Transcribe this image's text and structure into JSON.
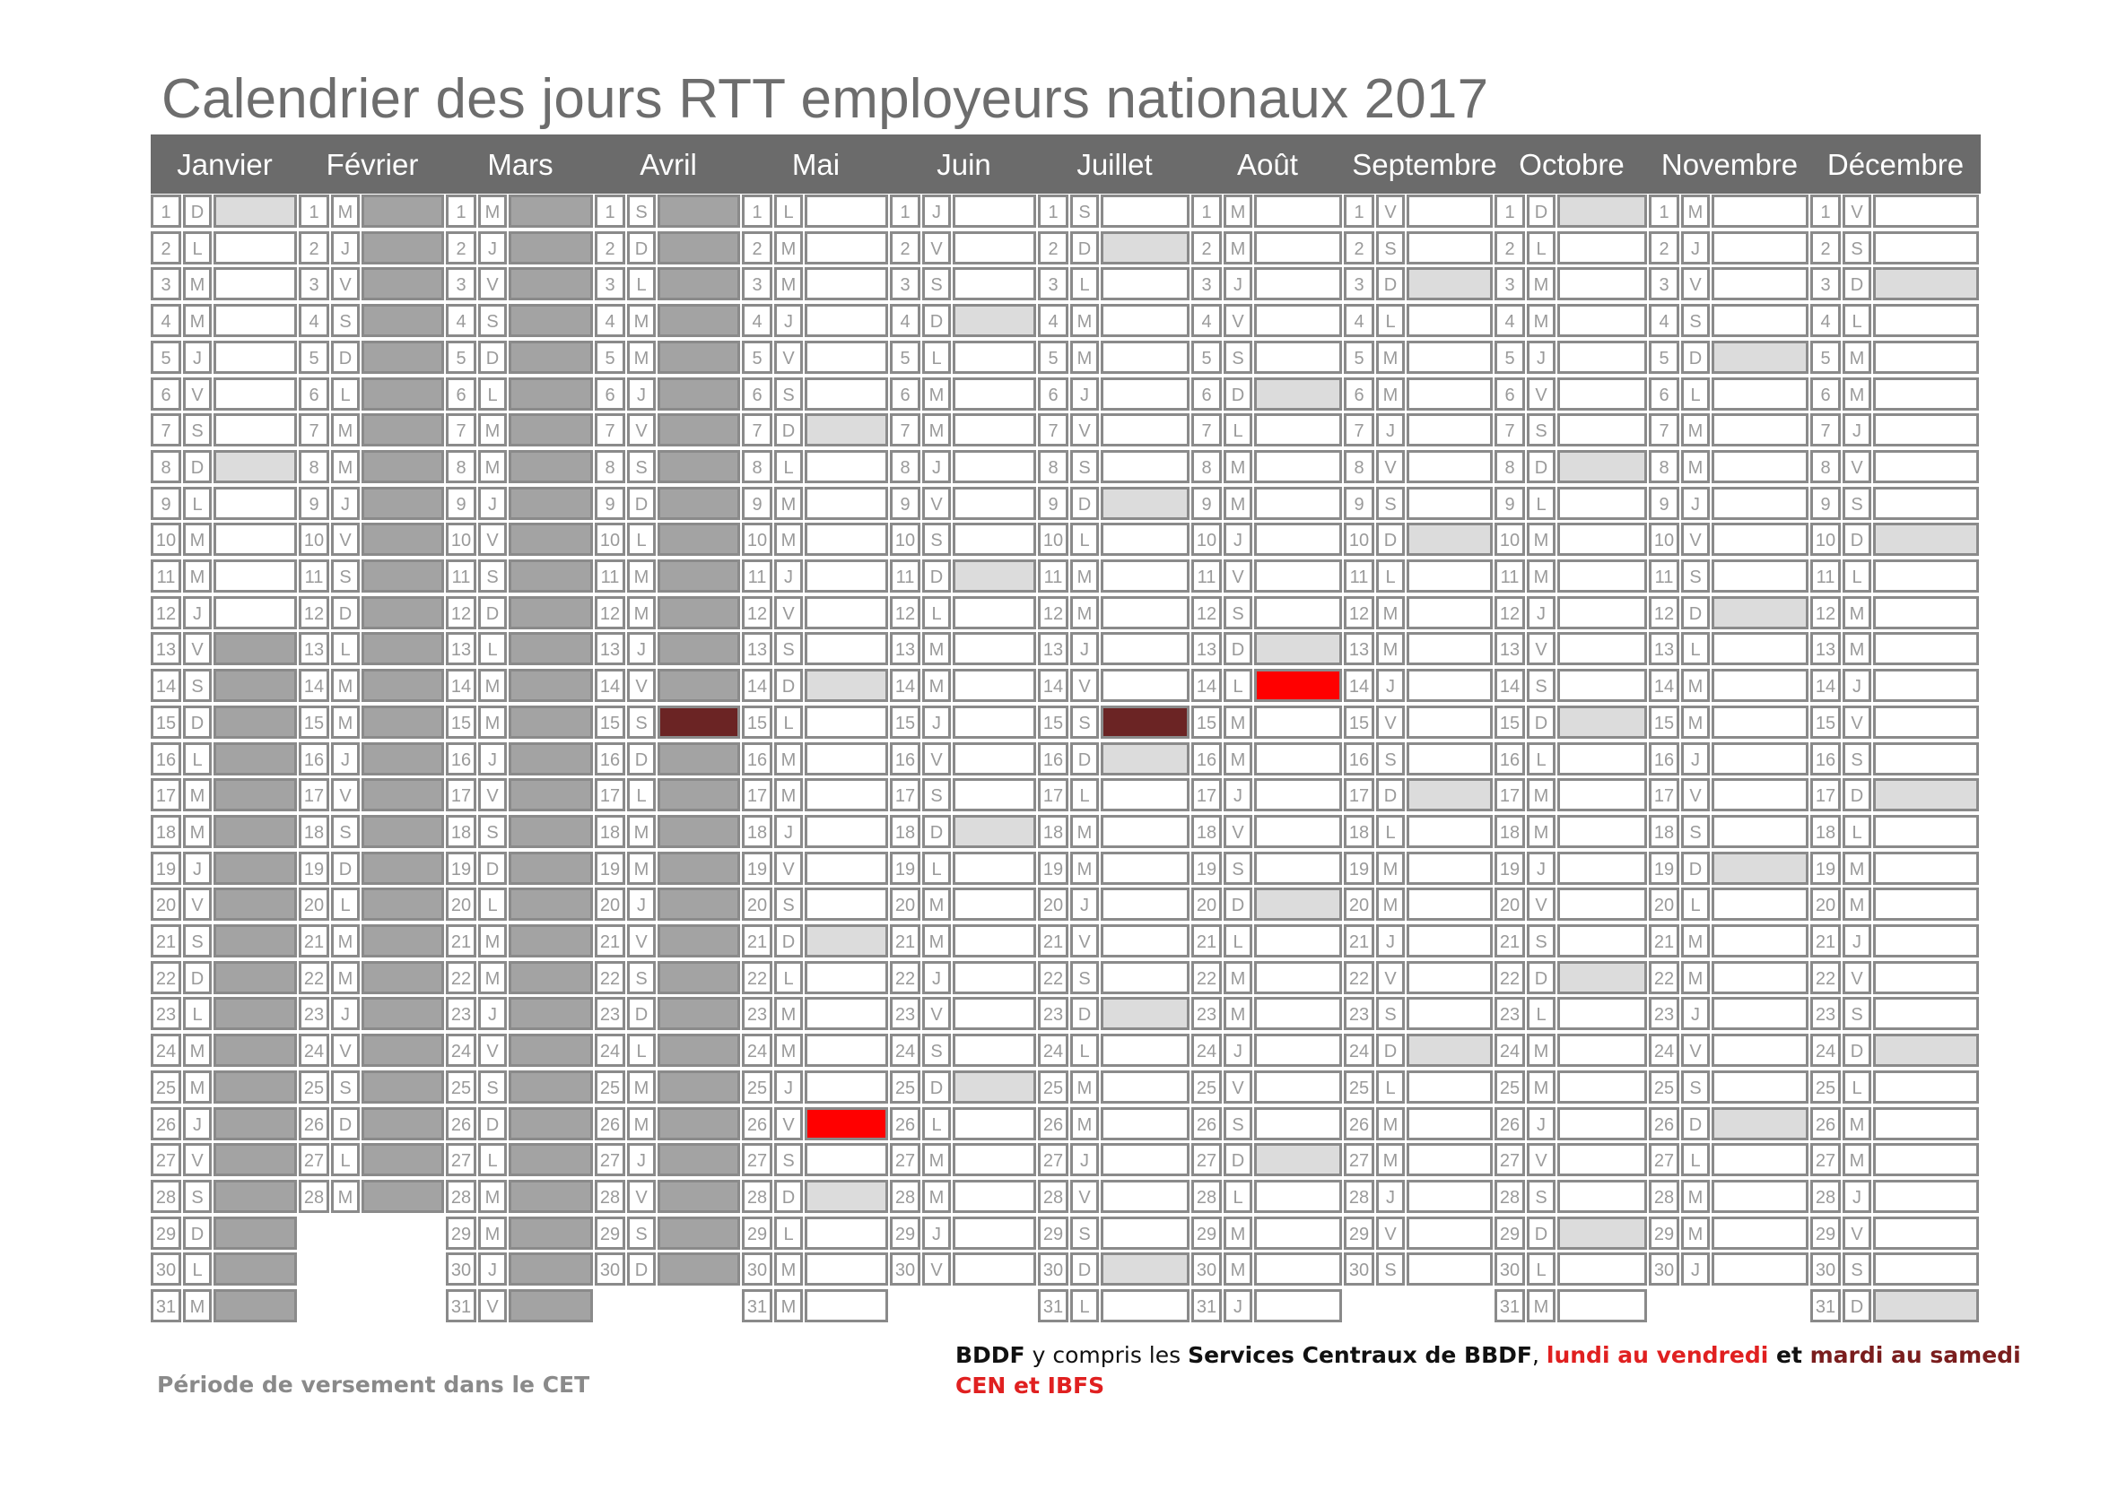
{
  "title": "Calendrier des jours RTT employeurs nationaux 2017",
  "year": 2017,
  "months": [
    {
      "name": "Janvier",
      "days": 31,
      "first_dow": 0
    },
    {
      "name": "Février",
      "days": 28,
      "first_dow": 3
    },
    {
      "name": "Mars",
      "days": 31,
      "first_dow": 3
    },
    {
      "name": "Avril",
      "days": 30,
      "first_dow": 6
    },
    {
      "name": "Mai",
      "days": 31,
      "first_dow": 1
    },
    {
      "name": "Juin",
      "days": 30,
      "first_dow": 4
    },
    {
      "name": "Juillet",
      "days": 31,
      "first_dow": 6
    },
    {
      "name": "Août",
      "days": 31,
      "first_dow": 2
    },
    {
      "name": "Septembre",
      "days": 30,
      "first_dow": 5
    },
    {
      "name": "Octobre",
      "days": 31,
      "first_dow": 0
    },
    {
      "name": "Novembre",
      "days": 30,
      "first_dow": 3
    },
    {
      "name": "Décembre",
      "days": 31,
      "first_dow": 5
    }
  ],
  "day_letters": [
    "D",
    "L",
    "M",
    "M",
    "J",
    "V",
    "S"
  ],
  "colors": {
    "header": "#6b6b6b",
    "cet_period": "#a3a3a3",
    "weekend": "#dcdcdc",
    "rtt_bddf": "#ff0000",
    "rtt_cen_ibfs": "#6b2424",
    "border": "#8a8a8a"
  },
  "cet_period": {
    "start": "2017-01-13",
    "end": "2017-04-30"
  },
  "rtt_days": [
    {
      "date": "2017-04-15",
      "type": "cen_ibfs"
    },
    {
      "date": "2017-05-26",
      "type": "bddf"
    },
    {
      "date": "2017-07-15",
      "type": "cen_ibfs"
    },
    {
      "date": "2017-08-14",
      "type": "bddf"
    }
  ],
  "legend": {
    "cet": "Période  de versement dans le CET",
    "line1_bold1": "BDDF",
    "line1_text1": " y compris les ",
    "line1_bold2": "Services Centraux de BBDF",
    "line1_text2": ", ",
    "line1_red": "lundi au vendredi",
    "line1_text3": " et ",
    "line1_dark": "mardi au samedi",
    "line2_red": "CEN et IBFS"
  }
}
